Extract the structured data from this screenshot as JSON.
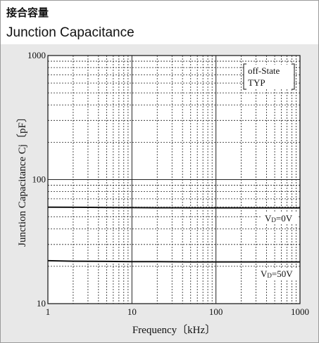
{
  "header": {
    "title_ja": "接合容量",
    "title_en": "Junction Capacitance"
  },
  "chart_data": {
    "type": "line",
    "xscale": "log",
    "yscale": "log",
    "xlabel": "Frequency〔kHz〕",
    "ylabel": "Junction Capacitance  Cj〔pF〕",
    "xlim": [
      1,
      1000
    ],
    "ylim": [
      10,
      1000
    ],
    "xticks": [
      "1",
      "10",
      "100",
      "1000"
    ],
    "yticks": [
      "10",
      "100",
      "1000"
    ],
    "grid": true,
    "legend_box": [
      "off-State",
      "TYP"
    ],
    "series": [
      {
        "name": "VD=0V",
        "label_main": "V",
        "label_sub": "D",
        "label_rest": "=0V",
        "x": [
          1,
          2,
          5,
          10,
          20,
          50,
          100,
          200,
          500,
          1000
        ],
        "y": [
          60,
          59.8,
          59.6,
          59.4,
          59.3,
          59.2,
          59.1,
          59.1,
          59.1,
          59.1
        ]
      },
      {
        "name": "VD=50V",
        "label_main": "V",
        "label_sub": "D",
        "label_rest": "=50V",
        "x": [
          1,
          2,
          5,
          10,
          20,
          50,
          100,
          200,
          500,
          1000
        ],
        "y": [
          22.2,
          22.0,
          21.9,
          21.8,
          21.8,
          21.7,
          21.7,
          21.7,
          21.7,
          21.7
        ]
      }
    ],
    "colors": {
      "line": "#111111",
      "grid": "#222222",
      "plot_bg": "#ffffff",
      "panel_bg": "#e8e8e8"
    }
  }
}
